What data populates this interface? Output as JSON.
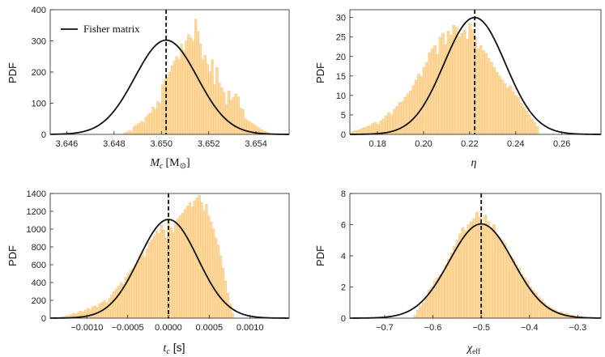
{
  "chart_data": [
    {
      "type": "histogram",
      "panel": "top-left",
      "ylabel": "PDF",
      "xlabel_main": "M",
      "xlabel_sub": "c",
      "xlabel_unit": "[M",
      "xlabel_unit_sub": "⊙",
      "xlabel_close": "]",
      "xlim": [
        3.6453,
        3.6554
      ],
      "ylim": [
        0,
        400
      ],
      "xticks": [
        3.646,
        3.648,
        3.65,
        3.652,
        3.654
      ],
      "xtick_labels": [
        "3.646",
        "3.648",
        "3.650",
        "3.652",
        "3.654"
      ],
      "yticks": [
        0,
        100,
        200,
        300,
        400
      ],
      "ytick_labels": [
        "0",
        "100",
        "200",
        "300",
        "400"
      ],
      "fisher": {
        "mean": 3.6502,
        "sd": 0.00132
      },
      "injected": 3.6502,
      "hist": {
        "range": [
          3.6484,
          3.6546
        ],
        "values": [
          5,
          8,
          12,
          10,
          25,
          30,
          35,
          42,
          38,
          55,
          65,
          70,
          88,
          80,
          105,
          100,
          160,
          175,
          185,
          200,
          220,
          235,
          250,
          240,
          290,
          270,
          300,
          320,
          310,
          300,
          370,
          330,
          290,
          240,
          255,
          225,
          200,
          240,
          160,
          215,
          165,
          150,
          135,
          95,
          140,
          110,
          120,
          130,
          120,
          85,
          80,
          50,
          45,
          40,
          35,
          30,
          25,
          20,
          15,
          10,
          8,
          5
        ]
      },
      "legend": {
        "label": "Fisher matrix",
        "position": "top-left"
      }
    },
    {
      "type": "histogram",
      "panel": "top-right",
      "ylabel": "PDF",
      "xlabel": "η",
      "xlim": [
        0.168,
        0.277
      ],
      "ylim": [
        0,
        32
      ],
      "xticks": [
        0.18,
        0.2,
        0.22,
        0.24,
        0.26
      ],
      "xtick_labels": [
        "0.18",
        "0.20",
        "0.22",
        "0.24",
        "0.26"
      ],
      "yticks": [
        0,
        5,
        10,
        15,
        20,
        25,
        30
      ],
      "ytick_labels": [
        "0",
        "5",
        "10",
        "15",
        "20",
        "25",
        "30"
      ],
      "fisher": {
        "mean": 0.2222,
        "sd": 0.0133
      },
      "injected": 0.2222,
      "hist": {
        "range": [
          0.168,
          0.25
        ],
        "values": [
          0.5,
          0.8,
          1.0,
          1.2,
          1.5,
          1.8,
          2.0,
          2.3,
          2.8,
          3.1,
          2.6,
          3.5,
          4.0,
          4.8,
          5.6,
          5.0,
          6.5,
          7.2,
          8.2,
          8.5,
          9.5,
          10.5,
          11.2,
          12.5,
          14.0,
          15.5,
          14.8,
          17.2,
          18.5,
          21.0,
          22.0,
          22.8,
          20.5,
          25.0,
          26.0,
          23.0,
          26.5,
          25.5,
          28.0,
          27.5,
          25.0,
          26.0,
          26.8,
          24.5,
          28.5,
          27.0,
          25.0,
          22.0,
          22.8,
          21.5,
          20.8,
          19.5,
          18.5,
          17.2,
          16.0,
          15.0,
          14.0,
          13.0,
          12.0,
          12.5,
          11.0,
          10.0,
          9.5,
          8.0,
          7.0,
          6.0,
          5.0,
          4.0,
          3.0,
          2.0
        ]
      }
    },
    {
      "type": "histogram",
      "panel": "bottom-left",
      "ylabel": "PDF",
      "xlabel_main": "t",
      "xlabel_sub": "c",
      "xlabel_unit": " [s]",
      "xlim": [
        -0.00145,
        0.00148
      ],
      "ylim": [
        0,
        1400
      ],
      "xticks": [
        -0.001,
        -0.0005,
        0.0,
        0.0005,
        0.001
      ],
      "xtick_labels": [
        "−0.0010",
        "−0.0005",
        "0.0000",
        "0.0005",
        "0.0010"
      ],
      "yticks": [
        0,
        200,
        400,
        600,
        800,
        1000,
        1200,
        1400
      ],
      "ytick_labels": [
        "0",
        "200",
        "400",
        "600",
        "800",
        "1000",
        "1200",
        "1400"
      ],
      "fisher": {
        "mean": 0.0,
        "sd": 0.00036
      },
      "injected": 0.0,
      "hist": {
        "range": [
          -0.00135,
          0.0008
        ],
        "values": [
          10,
          15,
          20,
          25,
          30,
          40,
          55,
          45,
          65,
          80,
          70,
          90,
          110,
          95,
          130,
          140,
          120,
          160,
          180,
          200,
          170,
          220,
          260,
          300,
          330,
          360,
          400,
          380,
          460,
          500,
          540,
          560,
          600,
          650,
          700,
          740,
          690,
          780,
          850,
          880,
          920,
          980,
          950,
          1050,
          990,
          900,
          1100,
          1020,
          960,
          1060,
          1120,
          1150,
          1180,
          1220,
          1260,
          1300,
          1250,
          1320,
          1350,
          1380,
          1300,
          1200,
          1280,
          1150,
          1080,
          1000,
          900,
          820,
          700,
          560,
          420,
          280,
          160,
          60
        ]
      }
    },
    {
      "type": "histogram",
      "panel": "bottom-right",
      "ylabel": "PDF",
      "xlabel_main": "χ",
      "xlabel_sub": "eff",
      "xlim": [
        -0.772,
        -0.252
      ],
      "ylim": [
        0,
        8
      ],
      "xticks": [
        -0.7,
        -0.6,
        -0.5,
        -0.4,
        -0.3
      ],
      "xtick_labels": [
        "−0.7",
        "−0.6",
        "−0.5",
        "−0.4",
        "−0.3"
      ],
      "yticks": [
        0,
        2,
        4,
        6,
        8
      ],
      "ytick_labels": [
        "0",
        "2",
        "4",
        "6",
        "8"
      ],
      "fisher": {
        "mean": -0.5,
        "sd": 0.066
      },
      "injected": -0.5,
      "hist": {
        "range": [
          -0.64,
          -0.29
        ],
        "values": [
          0.2,
          0.5,
          0.8,
          1.0,
          1.4,
          1.8,
          2.0,
          2.4,
          2.6,
          2.8,
          3.0,
          3.4,
          3.8,
          4.2,
          4.6,
          5.0,
          5.4,
          5.8,
          5.6,
          6.0,
          6.2,
          6.4,
          6.8,
          6.5,
          6.0,
          6.6,
          6.2,
          5.8,
          6.0,
          5.4,
          5.2,
          5.0,
          4.8,
          4.2,
          4.0,
          3.8,
          3.4,
          3.2,
          2.8,
          2.6,
          2.4,
          2.0,
          1.8,
          1.6,
          1.4,
          1.2,
          1.0,
          0.8,
          0.7,
          0.6,
          0.5,
          0.4,
          0.4,
          0.3,
          0.3,
          0.2,
          0.2,
          0.1,
          0.1,
          0.1
        ]
      }
    }
  ]
}
